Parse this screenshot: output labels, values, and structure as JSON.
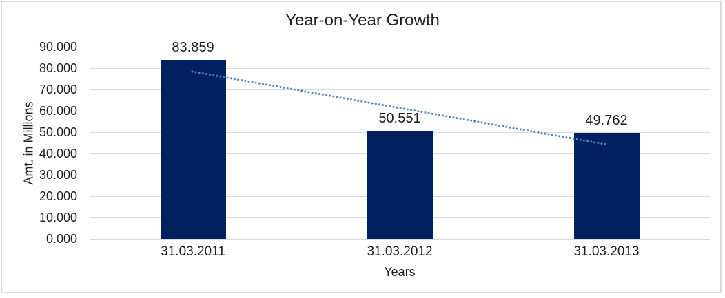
{
  "window": {
    "background_color": "#ffffff",
    "frame_border_color": "#dcdcdc"
  },
  "chart_data": {
    "type": "bar",
    "title": "Year-on-Year Growth",
    "xlabel": "Years",
    "ylabel": "Amt. in Millions",
    "categories": [
      "31.03.2011",
      "31.03.2012",
      "31.03.2013"
    ],
    "values": [
      83.859,
      50.551,
      49.762
    ],
    "data_labels": [
      "83.859",
      "50.551",
      "49.762"
    ],
    "ylim": [
      0,
      90
    ],
    "yticks": [
      {
        "value": 0,
        "label": "0.000"
      },
      {
        "value": 10,
        "label": "10.000"
      },
      {
        "value": 20,
        "label": "20.000"
      },
      {
        "value": 30,
        "label": "30.000"
      },
      {
        "value": 40,
        "label": "40.000"
      },
      {
        "value": 50,
        "label": "50.000"
      },
      {
        "value": 60,
        "label": "60.000"
      },
      {
        "value": 70,
        "label": "70.000"
      },
      {
        "value": 80,
        "label": "80.000"
      },
      {
        "value": 90,
        "label": "90.000"
      }
    ],
    "grid": "horizontal-major",
    "legend_position": "none",
    "bar_color": "#002060",
    "gridline_color": "#d9d9d9",
    "axis_line_color": "#d9d9d9",
    "text_color": "#1f1f1f",
    "trendline": {
      "type": "linear",
      "style": "dotted",
      "color": "#4e87c6",
      "start_value": 78.4,
      "end_value": 44.3
    }
  }
}
